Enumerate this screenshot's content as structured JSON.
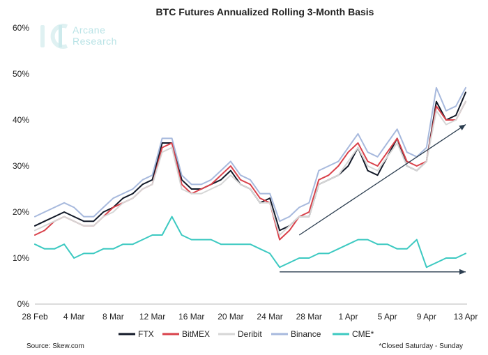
{
  "chart_data": {
    "type": "line",
    "title": "BTC Futures Annualized Rolling 3-Month Basis",
    "xlabel": "",
    "ylabel": "",
    "ylim": [
      0,
      60
    ],
    "y_ticks": [
      0,
      10,
      20,
      30,
      40,
      50,
      60
    ],
    "y_tick_labels": [
      "0%",
      "10%",
      "20%",
      "30%",
      "40%",
      "50%",
      "60%"
    ],
    "x_range": [
      0,
      44
    ],
    "x_ticks": [
      0,
      4,
      8,
      12,
      16,
      20,
      24,
      28,
      32,
      36,
      40,
      44
    ],
    "x_tick_labels": [
      "28 Feb",
      "4 Mar",
      "8 Mar",
      "12 Mar",
      "16 Mar",
      "20 Mar",
      "24 Mar",
      "28 Mar",
      "1 Apr",
      "5 Apr",
      "9 Apr",
      "13 Apr"
    ],
    "grid": false,
    "legend_position": "bottom",
    "series": [
      {
        "name": "FTX",
        "color": "#111827",
        "x": [
          0,
          1,
          2,
          3,
          4,
          5,
          6,
          7,
          8,
          9,
          10,
          11,
          12,
          13,
          14,
          15,
          16,
          17,
          18,
          19,
          20,
          21,
          22,
          23,
          24,
          25,
          26,
          27,
          28,
          29,
          30,
          31,
          32,
          33,
          34,
          35,
          36,
          37,
          38,
          39,
          40,
          41,
          42,
          43,
          44
        ],
        "values": [
          17,
          18,
          19,
          20,
          19,
          18,
          18,
          20,
          21,
          23,
          24,
          26,
          27,
          35,
          35,
          27,
          25,
          25,
          26,
          27,
          29,
          26,
          25,
          22,
          23,
          16,
          17,
          19,
          19,
          26,
          27,
          28,
          30,
          34,
          29,
          28,
          32,
          36,
          30,
          29,
          31,
          44,
          40,
          41,
          46
        ]
      },
      {
        "name": "BitMEX",
        "color": "#d9414a",
        "x": [
          0,
          1,
          2,
          3,
          4,
          5,
          6,
          7,
          8,
          9,
          10,
          11,
          12,
          13,
          14,
          15,
          16,
          17,
          18,
          19,
          20,
          21,
          22,
          23,
          24,
          25,
          26,
          27,
          28,
          29,
          30,
          31,
          32,
          33,
          34,
          35,
          36,
          37,
          38,
          39,
          40,
          41,
          42,
          43,
          44
        ],
        "values": [
          15,
          16,
          18,
          19,
          18,
          17,
          17,
          19,
          21,
          22,
          23,
          25,
          26,
          34,
          35,
          26,
          24,
          25,
          26,
          28,
          30,
          27,
          26,
          23,
          22,
          14,
          16,
          19,
          20,
          27,
          28,
          30,
          33,
          35,
          31,
          30,
          33,
          36,
          31,
          30,
          31,
          43,
          40,
          40,
          44
        ]
      },
      {
        "name": "Deribit",
        "color": "#d6d6d6",
        "x": [
          0,
          1,
          2,
          3,
          4,
          5,
          6,
          7,
          8,
          9,
          10,
          11,
          12,
          13,
          14,
          15,
          16,
          17,
          18,
          19,
          20,
          21,
          22,
          23,
          24,
          25,
          26,
          27,
          28,
          29,
          30,
          31,
          32,
          33,
          34,
          35,
          36,
          37,
          38,
          39,
          40,
          41,
          42,
          43,
          44
        ],
        "values": [
          16,
          17,
          18,
          19,
          18,
          17,
          17,
          19,
          20,
          22,
          23,
          25,
          26,
          33,
          34,
          25,
          24,
          24,
          25,
          26,
          28,
          26,
          25,
          22,
          22,
          15,
          17,
          19,
          19,
          26,
          27,
          28,
          31,
          34,
          30,
          29,
          32,
          35,
          30,
          29,
          31,
          42,
          39,
          40,
          44
        ]
      },
      {
        "name": "Binance",
        "color": "#a7b9dd",
        "x": [
          0,
          1,
          2,
          3,
          4,
          5,
          6,
          7,
          8,
          9,
          10,
          11,
          12,
          13,
          14,
          15,
          16,
          17,
          18,
          19,
          20,
          21,
          22,
          23,
          24,
          25,
          26,
          27,
          28,
          29,
          30,
          31,
          32,
          33,
          34,
          35,
          36,
          37,
          38,
          39,
          40,
          41,
          42,
          43,
          44
        ],
        "values": [
          19,
          20,
          21,
          22,
          21,
          19,
          19,
          21,
          23,
          24,
          25,
          27,
          28,
          36,
          36,
          28,
          26,
          26,
          27,
          29,
          31,
          28,
          27,
          24,
          24,
          18,
          19,
          21,
          22,
          29,
          30,
          31,
          34,
          37,
          33,
          32,
          35,
          38,
          33,
          32,
          34,
          47,
          42,
          43,
          47
        ]
      },
      {
        "name": "CME*",
        "color": "#3cc9c1",
        "x": [
          0,
          1,
          2,
          3,
          4,
          5,
          6,
          7,
          8,
          9,
          10,
          11,
          12,
          13,
          14,
          15,
          16,
          17,
          18,
          19,
          20,
          21,
          22,
          23,
          24,
          25,
          26,
          27,
          28,
          29,
          30,
          31,
          32,
          33,
          34,
          35,
          36,
          37,
          38,
          39,
          40,
          41,
          42,
          43,
          44
        ],
        "values": [
          13,
          12,
          12,
          13,
          10,
          11,
          11,
          12,
          12,
          13,
          13,
          14,
          15,
          15,
          19,
          15,
          14,
          14,
          14,
          13,
          13,
          13,
          13,
          12,
          11,
          8,
          9,
          10,
          10,
          11,
          11,
          12,
          13,
          14,
          14,
          13,
          13,
          12,
          12,
          14,
          8,
          9,
          10,
          10,
          11
        ]
      }
    ],
    "annotations": [
      {
        "type": "arrow",
        "from": [
          27,
          15
        ],
        "to": [
          44,
          39
        ],
        "color": "#2c3e50"
      },
      {
        "type": "arrow",
        "from": [
          25,
          7
        ],
        "to": [
          44,
          7
        ],
        "color": "#2c3e50"
      }
    ]
  },
  "logo": {
    "line1": "Arcane",
    "line2": "Research",
    "color": "#b9e3e6"
  },
  "footer": {
    "source": "Source: Skew.com",
    "note": "*Closed Saturday - Sunday"
  }
}
